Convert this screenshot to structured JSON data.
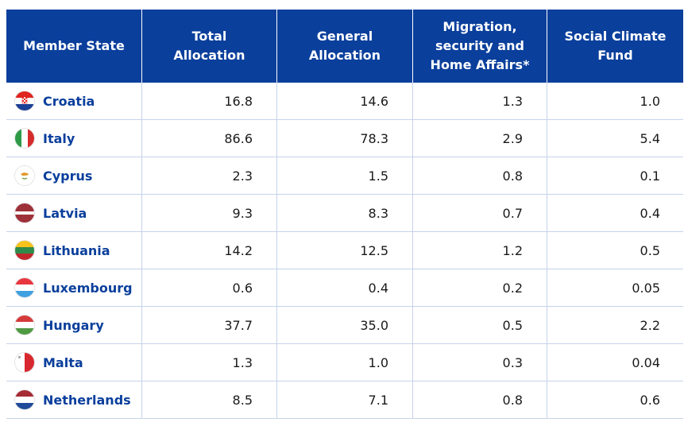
{
  "headers": [
    "Member State",
    "Total\nAllocation",
    "General\nAllocation",
    "Migration,\nsecurity and\nHome Affairs*",
    "Social Climate\nFund"
  ],
  "rows": [
    {
      "state": "Croatia",
      "flag": "croatia-flag-icon",
      "total": "16.8",
      "general": "14.6",
      "migration": "1.3",
      "social": "1.0"
    },
    {
      "state": "Italy",
      "flag": "italy-flag-icon",
      "total": "86.6",
      "general": "78.3",
      "migration": "2.9",
      "social": "5.4"
    },
    {
      "state": "Cyprus",
      "flag": "cyprus-flag-icon",
      "total": "2.3",
      "general": "1.5",
      "migration": "0.8",
      "social": "0.1"
    },
    {
      "state": "Latvia",
      "flag": "latvia-flag-icon",
      "total": "9.3",
      "general": "8.3",
      "migration": "0.7",
      "social": "0.4"
    },
    {
      "state": "Lithuania",
      "flag": "lithuania-flag-icon",
      "total": "14.2",
      "general": "12.5",
      "migration": "1.2",
      "social": "0.5"
    },
    {
      "state": "Luxembourg",
      "flag": "luxembourg-flag-icon",
      "total": "0.6",
      "general": "0.4",
      "migration": "0.2",
      "social": "0.05"
    },
    {
      "state": "Hungary",
      "flag": "hungary-flag-icon",
      "total": "37.7",
      "general": "35.0",
      "migration": "0.5",
      "social": "2.2"
    },
    {
      "state": "Malta",
      "flag": "malta-flag-icon",
      "total": "1.3",
      "general": "1.0",
      "migration": "0.3",
      "social": "0.04"
    },
    {
      "state": "Netherlands",
      "flag": "netherlands-flag-icon",
      "total": "8.5",
      "general": "7.1",
      "migration": "0.8",
      "social": "0.6"
    }
  ],
  "colors": {
    "header_bg": "#0a3f9c",
    "name_text": "#0a3f9c",
    "grid": "#c5d3ea"
  }
}
